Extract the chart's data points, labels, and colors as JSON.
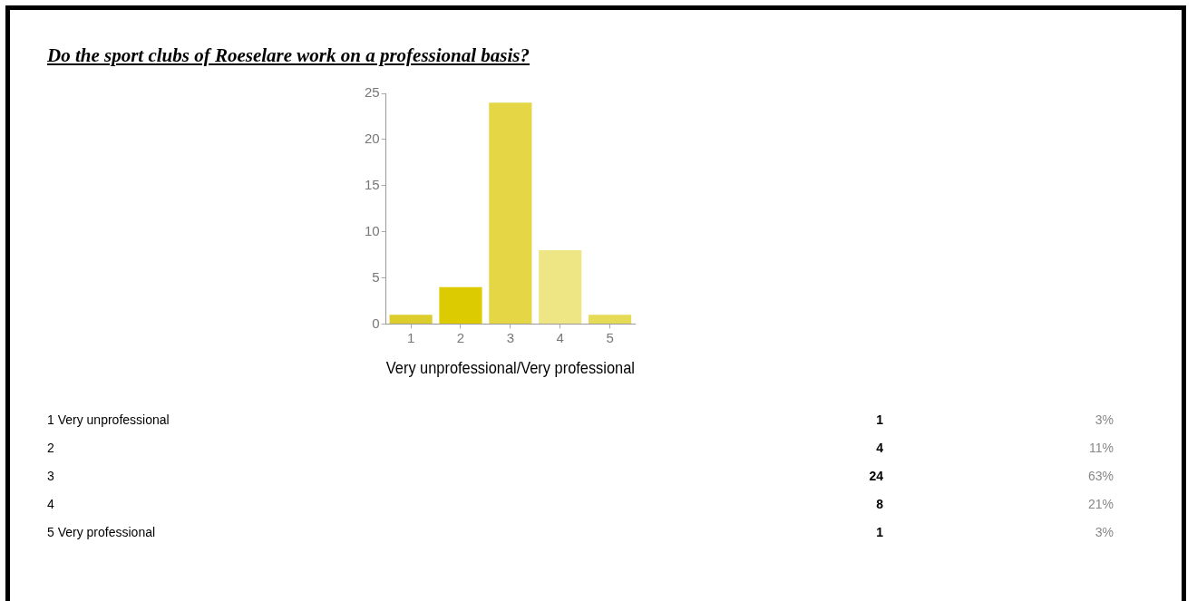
{
  "chart_data": [
    {
      "type": "bar",
      "title": "Do the sport clubs of Roeselare work on a professional basis?",
      "xlabel": "Very unprofessional/Very professional",
      "categories": [
        "1",
        "2",
        "3",
        "4",
        "5"
      ],
      "values": [
        1,
        4,
        24,
        8,
        1
      ],
      "colors": [
        "#dccd2c",
        "#dccb00",
        "#e4d645",
        "#eee585",
        "#e6db56"
      ],
      "ylim": [
        0,
        25
      ],
      "yticks": [
        0,
        5,
        10,
        15,
        20,
        25
      ]
    },
    {
      "type": "other",
      "values": [
        1,
        4,
        24,
        8,
        1
      ],
      "data_labels": true,
      "annotations": [
        "1 Very unprofessional",
        "2",
        "3",
        "4",
        "5 Very professional",
        "3%",
        "11%",
        "63%",
        "21%",
        "3%"
      ]
    }
  ]
}
